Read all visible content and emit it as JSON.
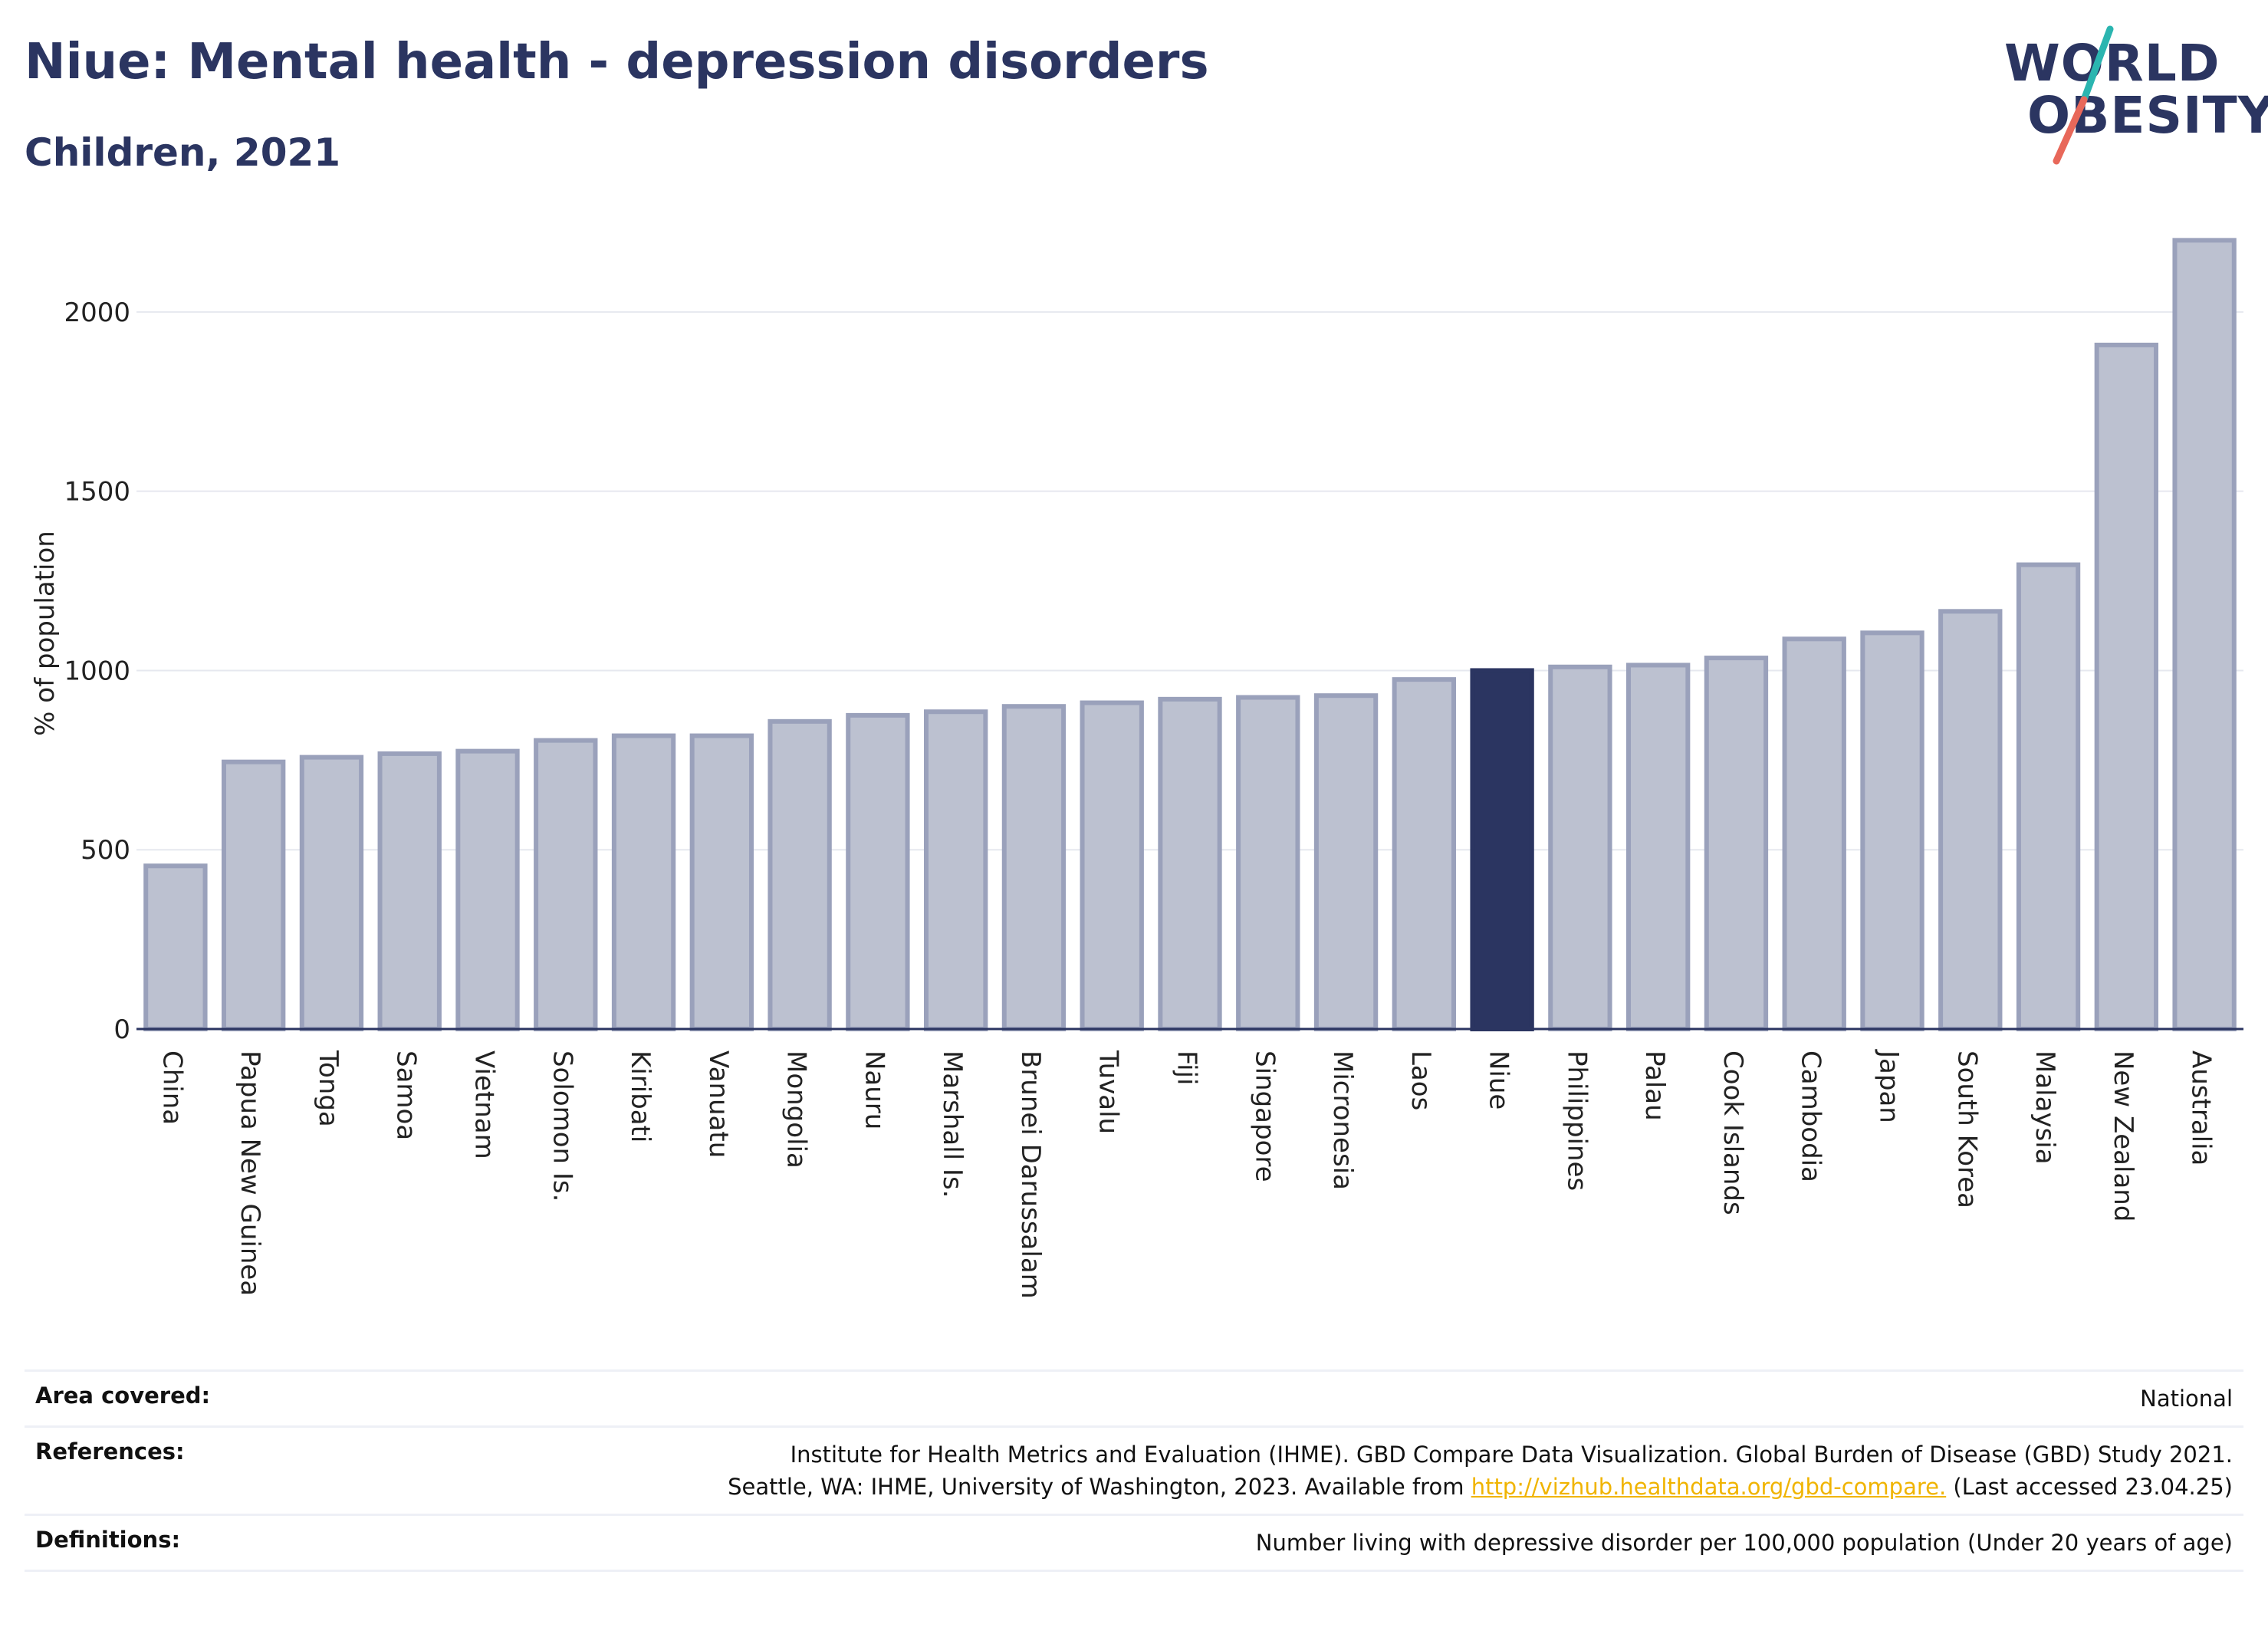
{
  "header": {
    "title": "Niue: Mental health - depression disorders",
    "subtitle": "Children, 2021"
  },
  "logo": {
    "line1": "WORLD",
    "line2": "OBESITY",
    "slash_colors": [
      "#2bb5b0",
      "#e8685a"
    ]
  },
  "colors": {
    "bar_default": "#bcc1d0",
    "bar_border": "#9aa1bb",
    "bar_highlight": "#2b3561",
    "grid": "#e6e8ef",
    "link": "#f0b400"
  },
  "chart_data": {
    "type": "bar",
    "ylabel": "% of population",
    "xlabel": "",
    "ylim": [
      0,
      2250
    ],
    "yticks": [
      0,
      500,
      1000,
      1500,
      2000
    ],
    "grid": true,
    "highlight": "Niue",
    "categories": [
      "China",
      "Papua New Guinea",
      "Tonga",
      "Samoa",
      "Vietnam",
      "Solomon Is.",
      "Kiribati",
      "Vanuatu",
      "Mongolia",
      "Nauru",
      "Marshall Is.",
      "Brunei Darussalam",
      "Tuvalu",
      "Fiji",
      "Singapore",
      "Micronesia",
      "Laos",
      "Niue",
      "Philippines",
      "Palau",
      "Cook Islands",
      "Cambodia",
      "Japan",
      "South Korea",
      "Malaysia",
      "New Zealand",
      "Australia"
    ],
    "values": [
      455,
      745,
      758,
      768,
      775,
      805,
      818,
      818,
      858,
      875,
      885,
      900,
      910,
      920,
      925,
      930,
      975,
      1000,
      1010,
      1015,
      1035,
      1088,
      1105,
      1165,
      1295,
      1908,
      2200
    ]
  },
  "footer": {
    "area_label": "Area covered:",
    "area_value": "National",
    "references_label": "References:",
    "references_line1": "Institute for Health Metrics and Evaluation (IHME). GBD Compare Data Visualization. Global Burden of Disease (GBD) Study 2021.",
    "references_line2_pre": "Seattle, WA: IHME, University of Washington, 2023. Available from ",
    "references_link": "http://vizhub.healthdata.org/gbd-compare.",
    "references_line2_post": " (Last accessed 23.04.25)",
    "definitions_label": "Definitions:",
    "definitions_value": "Number living with depressive disorder per 100,000 population (Under 20 years of age)"
  }
}
